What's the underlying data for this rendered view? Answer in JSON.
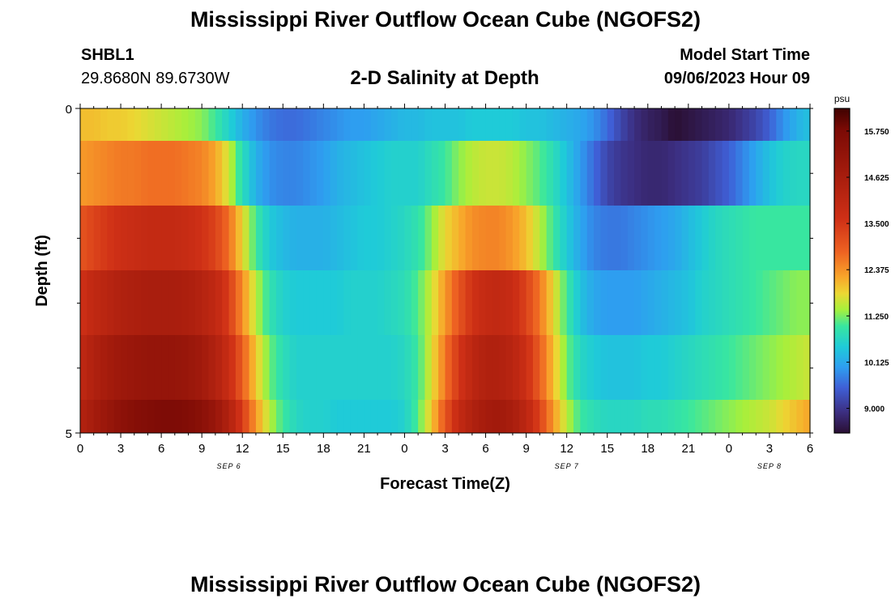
{
  "title": "Mississippi River Outflow Ocean Cube (NGOFS2)",
  "title_repeat": "Mississippi River Outflow Ocean Cube (NGOFS2)",
  "station": {
    "id": "SHBL1",
    "coords": "29.8680N  89.6730W"
  },
  "subtitle": "2-D Salinity at Depth",
  "model_start": {
    "label": "Model Start Time",
    "value": "09/06/2023 Hour 09"
  },
  "chart_data": {
    "type": "heatmap",
    "title": "2-D Salinity at Depth",
    "xlabel": "Forecast Time(Z)",
    "ylabel": "Depth (ft)",
    "x_tick_labels": [
      "0",
      "3",
      "6",
      "9",
      "12",
      "15",
      "18",
      "21",
      "0",
      "3",
      "6",
      "9",
      "12",
      "15",
      "18",
      "21",
      "0",
      "3",
      "6"
    ],
    "x_range_hours": [
      0,
      54
    ],
    "date_labels": [
      {
        "label": "SEP 6",
        "hour": 11
      },
      {
        "label": "SEP 7",
        "hour": 36
      },
      {
        "label": "SEP 8",
        "hour": 51
      }
    ],
    "y_range": [
      0,
      5
    ],
    "y_tick_labels": [
      "0",
      "5"
    ],
    "y_minor_ticks": 5,
    "colorbar": {
      "unit": "psu",
      "min": 8.4,
      "max": 16.3,
      "tick_labels": [
        "15.750",
        "14.625",
        "13.500",
        "12.375",
        "11.250",
        "10.125",
        "9.000"
      ],
      "tick_values": [
        15.75,
        14.625,
        13.5,
        12.375,
        11.25,
        10.125,
        9.0
      ]
    },
    "colormap": [
      [
        8.4,
        "#2a0f33"
      ],
      [
        8.9,
        "#3c2e80"
      ],
      [
        9.5,
        "#3f5fd6"
      ],
      [
        10.0,
        "#2e9ef0"
      ],
      [
        10.5,
        "#1fcbd8"
      ],
      [
        11.0,
        "#38e6a0"
      ],
      [
        11.4,
        "#a6f03c"
      ],
      [
        11.8,
        "#ecd733"
      ],
      [
        12.2,
        "#f8a52a"
      ],
      [
        12.8,
        "#ee6322"
      ],
      [
        13.6,
        "#cf3016"
      ],
      [
        14.8,
        "#a11a0c"
      ],
      [
        15.8,
        "#7a0a05"
      ],
      [
        16.3,
        "#3f0200"
      ]
    ],
    "hours": [
      0,
      1,
      2,
      3,
      4,
      5,
      6,
      7,
      8,
      9,
      10,
      11,
      12,
      13,
      14,
      15,
      16,
      17,
      18,
      19,
      20,
      21,
      22,
      23,
      24,
      25,
      26,
      27,
      28,
      29,
      30,
      31,
      32,
      33,
      34,
      35,
      36,
      37,
      38,
      39,
      40,
      41,
      42,
      43,
      44,
      45,
      46,
      47,
      48,
      49,
      50,
      51,
      52,
      53,
      54
    ],
    "rows": [
      {
        "depth": 0,
        "values": [
          12.0,
          12.0,
          11.9,
          11.9,
          11.8,
          11.7,
          11.6,
          11.5,
          11.4,
          11.3,
          11.0,
          10.6,
          10.2,
          9.9,
          9.7,
          9.6,
          9.6,
          9.7,
          9.8,
          9.9,
          10.0,
          10.0,
          10.1,
          10.2,
          10.3,
          10.3,
          10.4,
          10.4,
          10.4,
          10.5,
          10.5,
          10.5,
          10.5,
          10.4,
          10.4,
          10.3,
          10.2,
          10.1,
          9.9,
          9.6,
          9.2,
          8.9,
          8.7,
          8.6,
          8.4,
          8.5,
          8.6,
          8.7,
          8.8,
          9.0,
          9.2,
          9.5,
          9.9,
          10.2,
          10.4
        ]
      },
      {
        "depth": 1,
        "values": [
          12.3,
          12.4,
          12.5,
          12.6,
          12.6,
          12.7,
          12.7,
          12.7,
          12.6,
          12.5,
          12.2,
          11.6,
          10.8,
          10.2,
          9.9,
          9.8,
          9.8,
          9.9,
          10.0,
          10.2,
          10.3,
          10.4,
          10.5,
          10.6,
          10.6,
          10.6,
          10.8,
          11.0,
          11.3,
          11.5,
          11.6,
          11.6,
          11.5,
          11.3,
          11.1,
          10.8,
          10.4,
          10.0,
          9.6,
          9.2,
          9.0,
          8.9,
          8.8,
          8.8,
          8.9,
          9.0,
          9.1,
          9.3,
          9.5,
          9.8,
          10.1,
          10.4,
          10.6,
          10.7,
          10.7
        ]
      },
      {
        "depth": 2,
        "values": [
          13.0,
          13.3,
          13.5,
          13.7,
          13.8,
          13.9,
          13.9,
          13.9,
          13.8,
          13.6,
          13.3,
          12.7,
          11.8,
          11.0,
          10.5,
          10.3,
          10.2,
          10.2,
          10.2,
          10.3,
          10.4,
          10.5,
          10.5,
          10.6,
          10.7,
          10.9,
          11.3,
          11.8,
          12.1,
          12.4,
          12.5,
          12.5,
          12.3,
          12.0,
          11.5,
          11.0,
          10.5,
          10.1,
          9.8,
          9.7,
          9.7,
          9.8,
          9.9,
          10.0,
          10.1,
          10.3,
          10.5,
          10.7,
          10.8,
          10.9,
          11.0,
          11.0,
          11.0,
          11.0,
          11.0
        ]
      },
      {
        "depth": 3,
        "values": [
          13.6,
          14.0,
          14.2,
          14.4,
          14.5,
          14.6,
          14.6,
          14.6,
          14.5,
          14.3,
          14.0,
          13.4,
          12.4,
          11.5,
          10.9,
          10.6,
          10.5,
          10.5,
          10.5,
          10.5,
          10.6,
          10.6,
          10.6,
          10.7,
          10.8,
          11.1,
          11.6,
          12.3,
          13.0,
          13.6,
          13.9,
          14.0,
          13.8,
          13.3,
          12.6,
          11.8,
          11.0,
          10.4,
          10.1,
          10.0,
          10.0,
          10.0,
          10.1,
          10.2,
          10.3,
          10.4,
          10.6,
          10.7,
          10.8,
          10.9,
          11.0,
          11.1,
          11.2,
          11.3,
          11.3
        ]
      },
      {
        "depth": 4,
        "values": [
          14.0,
          14.4,
          14.7,
          14.9,
          15.0,
          15.1,
          15.1,
          15.1,
          15.0,
          14.8,
          14.4,
          13.8,
          12.9,
          11.9,
          11.2,
          10.8,
          10.6,
          10.6,
          10.6,
          10.6,
          10.6,
          10.6,
          10.6,
          10.6,
          10.7,
          11.0,
          11.7,
          12.6,
          13.5,
          14.1,
          14.4,
          14.4,
          14.2,
          13.7,
          12.9,
          12.0,
          11.2,
          10.7,
          10.5,
          10.4,
          10.4,
          10.4,
          10.5,
          10.5,
          10.6,
          10.7,
          10.8,
          10.9,
          11.0,
          11.1,
          11.2,
          11.3,
          11.4,
          11.5,
          11.6
        ]
      },
      {
        "depth": 5,
        "values": [
          14.3,
          14.7,
          15.0,
          15.3,
          15.5,
          15.6,
          15.7,
          15.7,
          15.6,
          15.4,
          15.0,
          14.4,
          13.4,
          12.3,
          11.5,
          11.0,
          10.7,
          10.6,
          10.6,
          10.5,
          10.5,
          10.5,
          10.5,
          10.5,
          10.6,
          11.1,
          11.9,
          13.0,
          13.9,
          14.4,
          14.7,
          14.8,
          14.6,
          14.1,
          13.3,
          12.3,
          11.5,
          11.0,
          10.8,
          10.7,
          10.7,
          10.7,
          10.8,
          10.8,
          10.9,
          11.0,
          11.1,
          11.2,
          11.3,
          11.4,
          11.5,
          11.6,
          11.8,
          12.0,
          12.2
        ]
      }
    ]
  }
}
